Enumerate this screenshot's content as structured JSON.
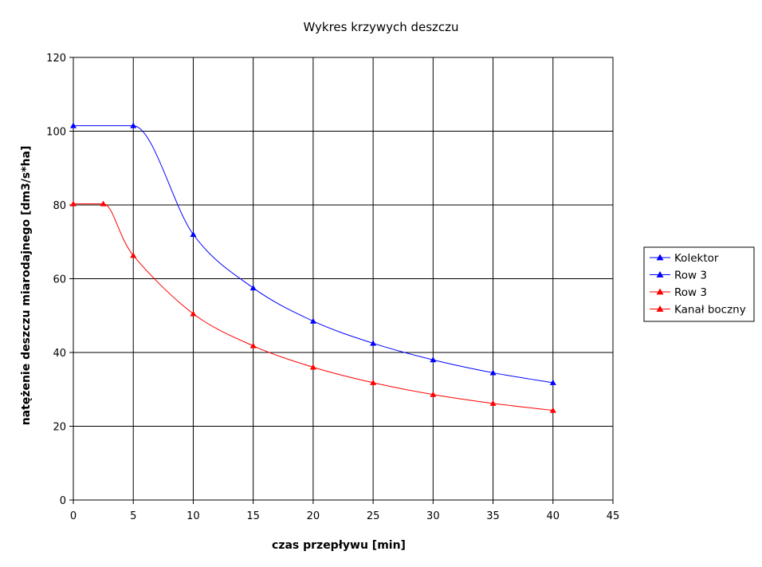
{
  "chart_data": {
    "type": "line",
    "title": "Wykres krzywych deszczu",
    "xlabel": "czas przepływu [min]",
    "ylabel": "natężenie deszczu miarodajnego [dm3/s*ha]",
    "xlim": [
      0,
      45
    ],
    "ylim": [
      0,
      120
    ],
    "xticks": [
      0,
      5,
      10,
      15,
      20,
      25,
      30,
      35,
      40,
      45
    ],
    "yticks": [
      0,
      20,
      40,
      60,
      80,
      100,
      120
    ],
    "grid": true,
    "legend_position": "right",
    "series": [
      {
        "name": "Kolektor",
        "color": "#0000ff",
        "marker": "triangle",
        "show_in_chart": true,
        "x": [
          0,
          5,
          10,
          15,
          20,
          25,
          30,
          35,
          40
        ],
        "y": [
          101.5,
          101.5,
          72.0,
          57.5,
          48.5,
          42.5,
          38.0,
          34.5,
          31.8
        ]
      },
      {
        "name": "Row 3",
        "color": "#0000ff",
        "marker": "triangle",
        "show_in_chart": false,
        "x": [],
        "y": []
      },
      {
        "name": "Row 3",
        "color": "#ff0000",
        "marker": "triangle",
        "show_in_chart": false,
        "x": [],
        "y": []
      },
      {
        "name": "Kanał boczny",
        "color": "#ff0000",
        "marker": "triangle",
        "show_in_chart": true,
        "x": [
          0,
          2.5,
          5,
          10,
          15,
          20,
          25,
          30,
          35,
          40
        ],
        "y": [
          80.3,
          80.3,
          66.3,
          50.5,
          41.8,
          36.0,
          31.8,
          28.6,
          26.2,
          24.3
        ]
      }
    ]
  }
}
